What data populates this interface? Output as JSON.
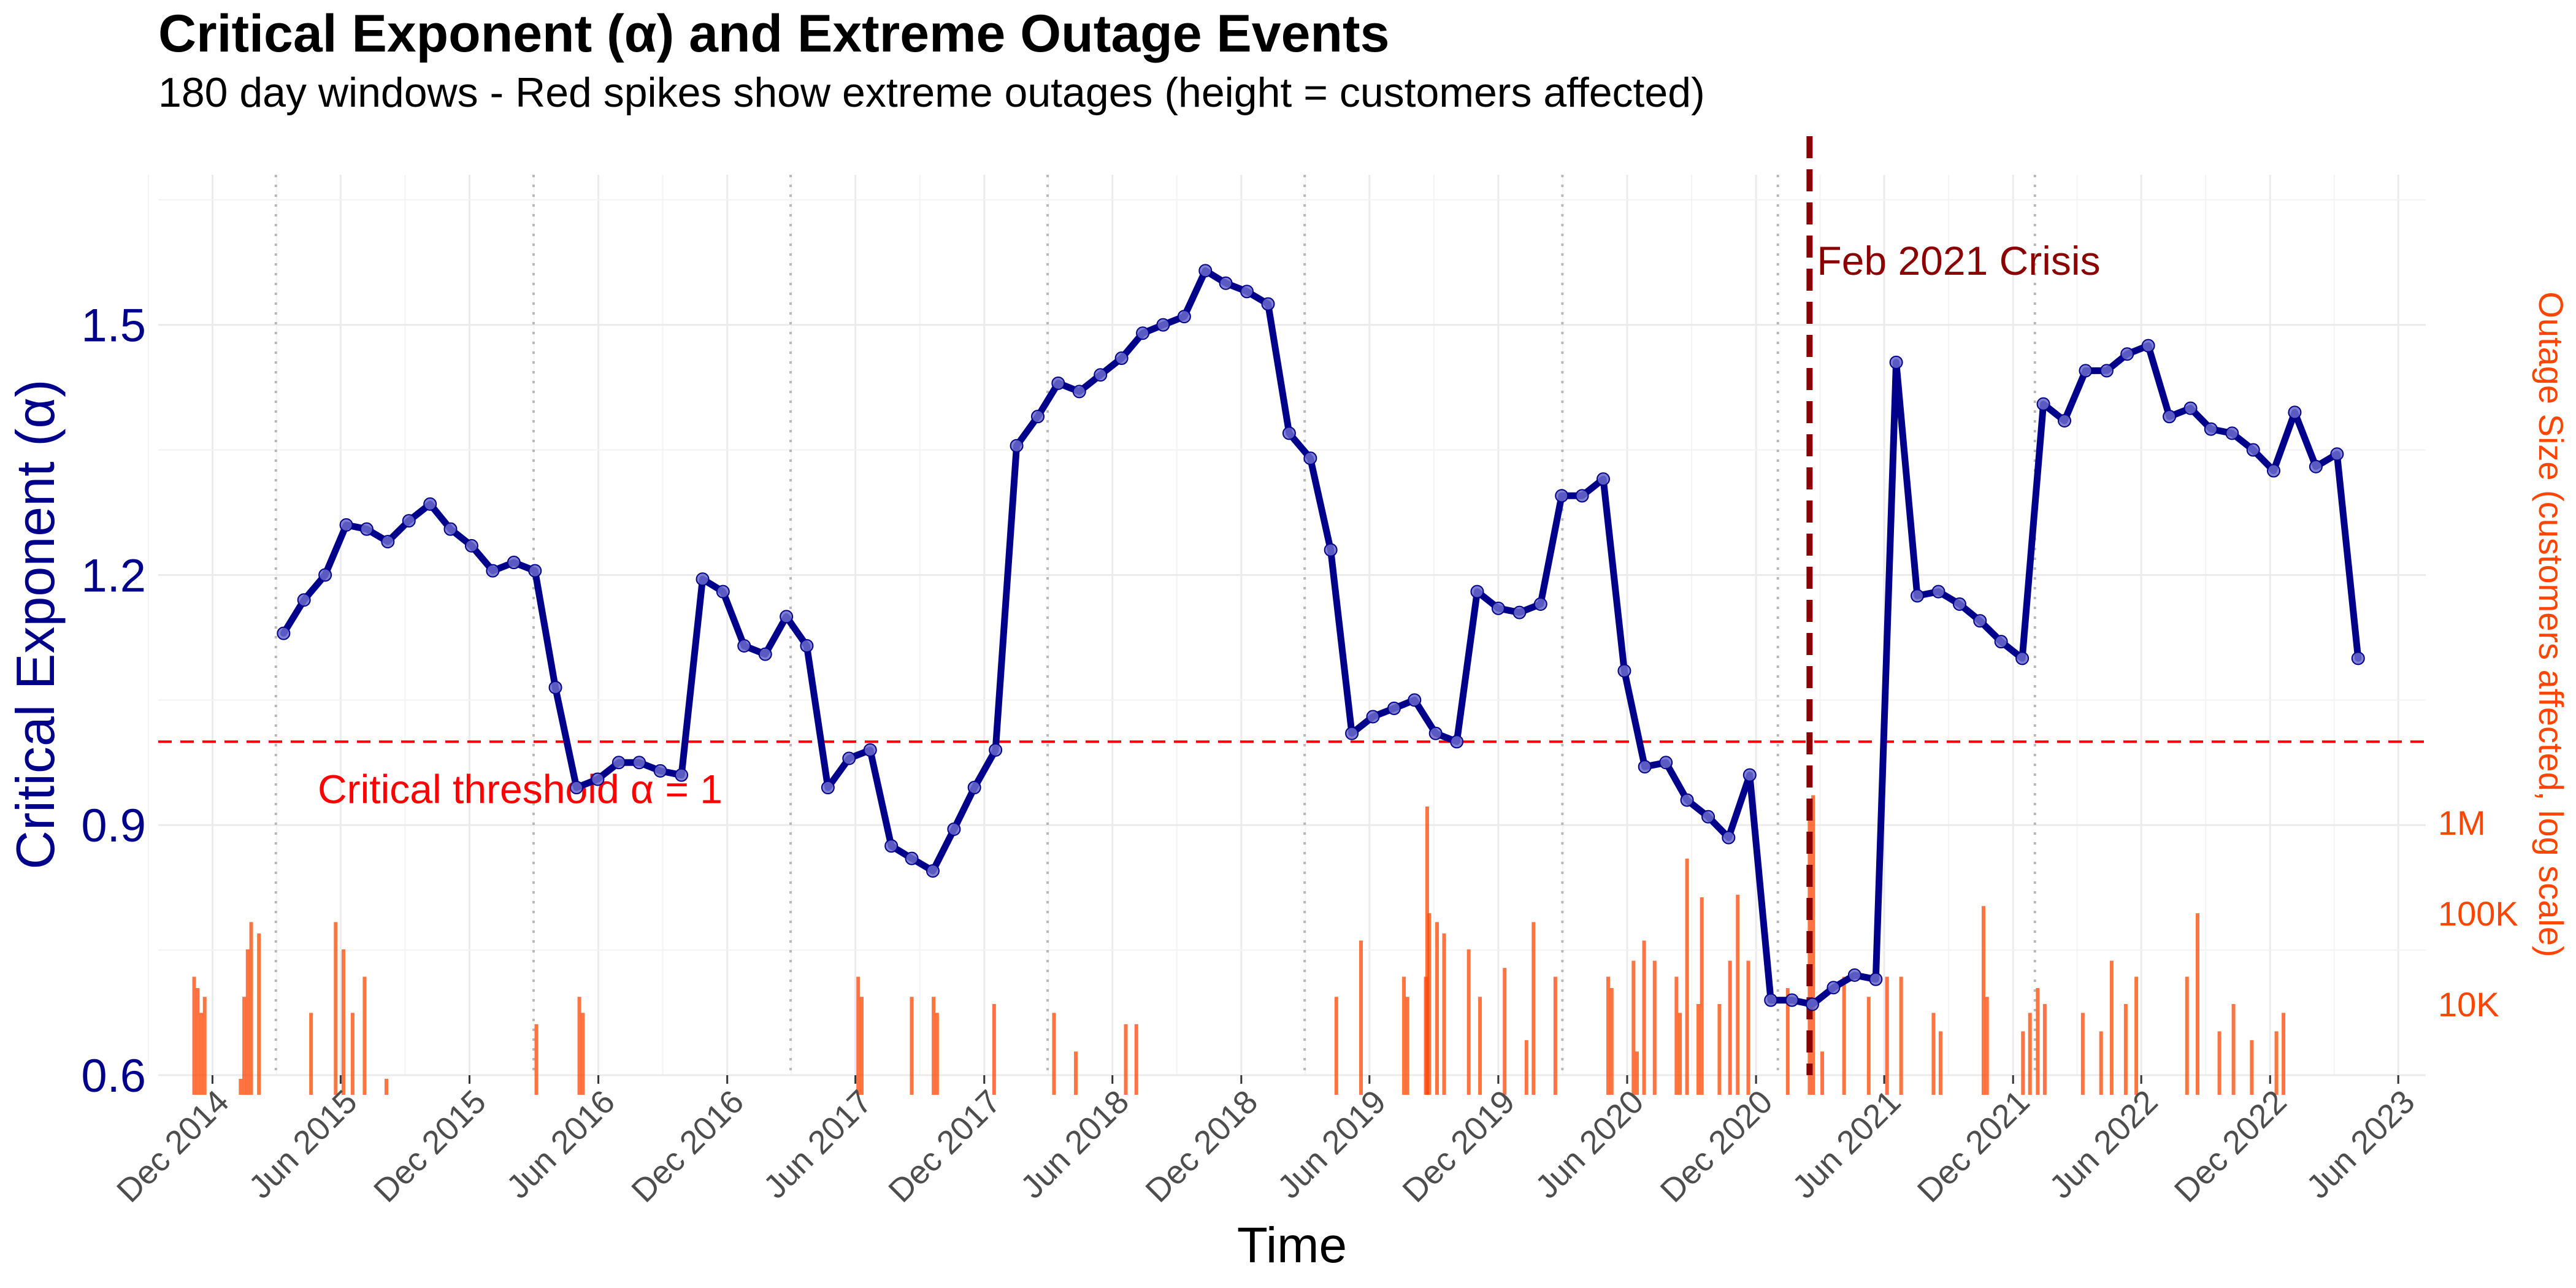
{
  "chart_data": {
    "type": "line",
    "title": "Critical Exponent (α) and Extreme Outage Events",
    "subtitle": "180 day windows - Red spikes show extreme outages (height = customers affected)",
    "xlabel": "Time",
    "ylabel": "Critical Exponent (α)",
    "y2label": "Outage Size (customers affected, log scale)",
    "xlim": [
      "2014-09-15",
      "2023-07-10"
    ],
    "ylim": [
      0.6,
      1.68
    ],
    "x_ticks": [
      {
        "date": "2014-12-01",
        "label": "Dec 2014"
      },
      {
        "date": "2015-06-01",
        "label": "Jun 2015"
      },
      {
        "date": "2015-12-01",
        "label": "Dec 2015"
      },
      {
        "date": "2016-06-01",
        "label": "Jun 2016"
      },
      {
        "date": "2016-12-01",
        "label": "Dec 2016"
      },
      {
        "date": "2017-06-01",
        "label": "Jun 2017"
      },
      {
        "date": "2017-12-01",
        "label": "Dec 2017"
      },
      {
        "date": "2018-06-01",
        "label": "Jun 2018"
      },
      {
        "date": "2018-12-01",
        "label": "Dec 2018"
      },
      {
        "date": "2019-06-01",
        "label": "Jun 2019"
      },
      {
        "date": "2019-12-01",
        "label": "Dec 2019"
      },
      {
        "date": "2020-06-01",
        "label": "Jun 2020"
      },
      {
        "date": "2020-12-01",
        "label": "Dec 2020"
      },
      {
        "date": "2021-06-01",
        "label": "Jun 2021"
      },
      {
        "date": "2021-12-01",
        "label": "Dec 2021"
      },
      {
        "date": "2022-06-01",
        "label": "Jun 2022"
      },
      {
        "date": "2022-12-01",
        "label": "Dec 2022"
      },
      {
        "date": "2023-06-01",
        "label": "Jun 2023"
      }
    ],
    "y_ticks": [
      {
        "value": 0.6,
        "label": "0.6"
      },
      {
        "value": 0.9,
        "label": "0.9"
      },
      {
        "value": 1.2,
        "label": "1.2"
      },
      {
        "value": 1.5,
        "label": "1.5"
      }
    ],
    "y2_ticks": [
      {
        "value": 10000,
        "label": "10K"
      },
      {
        "value": 100000,
        "label": "100K"
      },
      {
        "value": 1000000,
        "label": "1M"
      }
    ],
    "grid": true,
    "series": [
      {
        "type": "line",
        "color": "#00008b",
        "points": [
          [
            "2015-03-12",
            1.13
          ],
          [
            "2015-04-10",
            1.17
          ],
          [
            "2015-05-10",
            1.2
          ],
          [
            "2015-06-09",
            1.26
          ],
          [
            "2015-07-08",
            1.255
          ],
          [
            "2015-08-07",
            1.24
          ],
          [
            "2015-09-06",
            1.265
          ],
          [
            "2015-10-06",
            1.285
          ],
          [
            "2015-11-04",
            1.255
          ],
          [
            "2015-12-04",
            1.235
          ],
          [
            "2016-01-03",
            1.205
          ],
          [
            "2016-02-02",
            1.215
          ],
          [
            "2016-03-03",
            1.205
          ],
          [
            "2016-04-01",
            1.065
          ],
          [
            "2016-05-01",
            0.945
          ],
          [
            "2016-05-31",
            0.955
          ],
          [
            "2016-06-30",
            0.975
          ],
          [
            "2016-07-29",
            0.975
          ],
          [
            "2016-08-28",
            0.965
          ],
          [
            "2016-09-27",
            0.96
          ],
          [
            "2016-10-27",
            1.195
          ],
          [
            "2016-11-25",
            1.18
          ],
          [
            "2016-12-25",
            1.115
          ],
          [
            "2017-01-24",
            1.105
          ],
          [
            "2017-02-23",
            1.15
          ],
          [
            "2017-03-24",
            1.115
          ],
          [
            "2017-04-23",
            0.945
          ],
          [
            "2017-05-23",
            0.98
          ],
          [
            "2017-06-22",
            0.99
          ],
          [
            "2017-07-22",
            0.875
          ],
          [
            "2017-08-20",
            0.86
          ],
          [
            "2017-09-19",
            0.845
          ],
          [
            "2017-10-19",
            0.895
          ],
          [
            "2017-11-17",
            0.945
          ],
          [
            "2017-12-17",
            0.99
          ],
          [
            "2018-01-16",
            1.355
          ],
          [
            "2018-02-15",
            1.39
          ],
          [
            "2018-03-16",
            1.43
          ],
          [
            "2018-04-15",
            1.42
          ],
          [
            "2018-05-15",
            1.44
          ],
          [
            "2018-06-14",
            1.46
          ],
          [
            "2018-07-14",
            1.49
          ],
          [
            "2018-08-12",
            1.5
          ],
          [
            "2018-09-11",
            1.51
          ],
          [
            "2018-10-11",
            1.565
          ],
          [
            "2018-11-09",
            1.55
          ],
          [
            "2018-12-09",
            1.54
          ],
          [
            "2019-01-08",
            1.525
          ],
          [
            "2019-02-07",
            1.37
          ],
          [
            "2019-03-09",
            1.34
          ],
          [
            "2019-04-07",
            1.23
          ],
          [
            "2019-05-07",
            1.01
          ],
          [
            "2019-06-06",
            1.03
          ],
          [
            "2019-07-06",
            1.04
          ],
          [
            "2019-08-04",
            1.05
          ],
          [
            "2019-09-03",
            1.01
          ],
          [
            "2019-10-03",
            1.0
          ],
          [
            "2019-11-01",
            1.18
          ],
          [
            "2019-12-01",
            1.16
          ],
          [
            "2019-12-31",
            1.155
          ],
          [
            "2020-01-30",
            1.165
          ],
          [
            "2020-02-29",
            1.295
          ],
          [
            "2020-03-29",
            1.295
          ],
          [
            "2020-04-28",
            1.315
          ],
          [
            "2020-05-28",
            1.085
          ],
          [
            "2020-06-26",
            0.97
          ],
          [
            "2020-07-26",
            0.975
          ],
          [
            "2020-08-25",
            0.93
          ],
          [
            "2020-09-24",
            0.91
          ],
          [
            "2020-10-23",
            0.885
          ],
          [
            "2020-11-22",
            0.96
          ],
          [
            "2020-12-22",
            0.69
          ],
          [
            "2021-01-21",
            0.69
          ],
          [
            "2021-02-19",
            0.685
          ],
          [
            "2021-03-21",
            0.705
          ],
          [
            "2021-04-20",
            0.72
          ],
          [
            "2021-05-20",
            0.715
          ],
          [
            "2021-06-18",
            1.455
          ],
          [
            "2021-07-18",
            1.175
          ],
          [
            "2021-08-17",
            1.18
          ],
          [
            "2021-09-16",
            1.165
          ],
          [
            "2021-10-15",
            1.145
          ],
          [
            "2021-11-14",
            1.12
          ],
          [
            "2021-12-14",
            1.1
          ],
          [
            "2022-01-13",
            1.405
          ],
          [
            "2022-02-12",
            1.385
          ],
          [
            "2022-03-14",
            1.445
          ],
          [
            "2022-04-13",
            1.445
          ],
          [
            "2022-05-12",
            1.465
          ],
          [
            "2022-06-11",
            1.475
          ],
          [
            "2022-07-11",
            1.39
          ],
          [
            "2022-08-10",
            1.4
          ],
          [
            "2022-09-08",
            1.375
          ],
          [
            "2022-10-08",
            1.37
          ],
          [
            "2022-11-07",
            1.35
          ],
          [
            "2022-12-06",
            1.325
          ],
          [
            "2023-01-05",
            1.395
          ],
          [
            "2023-02-04",
            1.33
          ],
          [
            "2023-03-06",
            1.345
          ],
          [
            "2023-04-05",
            1.1
          ]
        ]
      },
      {
        "type": "spikes",
        "color": "#ff4500",
        "baseline": 1000,
        "points": [
          [
            "2014-11-05",
            20000
          ],
          [
            "2014-11-10",
            15000
          ],
          [
            "2014-11-15",
            8000
          ],
          [
            "2014-11-20",
            12000
          ],
          [
            "2015-01-10",
            1500
          ],
          [
            "2015-01-15",
            12000
          ],
          [
            "2015-01-20",
            40000
          ],
          [
            "2015-01-25",
            80000
          ],
          [
            "2015-02-05",
            60000
          ],
          [
            "2015-04-20",
            8000
          ],
          [
            "2015-05-25",
            80000
          ],
          [
            "2015-06-05",
            40000
          ],
          [
            "2015-06-18",
            8000
          ],
          [
            "2015-07-05",
            20000
          ],
          [
            "2015-08-05",
            1500
          ],
          [
            "2016-03-05",
            6000
          ],
          [
            "2016-05-05",
            12000
          ],
          [
            "2016-05-10",
            8000
          ],
          [
            "2017-06-05",
            20000
          ],
          [
            "2017-06-10",
            12000
          ],
          [
            "2017-08-20",
            12000
          ],
          [
            "2017-09-20",
            12000
          ],
          [
            "2017-09-25",
            8000
          ],
          [
            "2017-12-15",
            10000
          ],
          [
            "2018-03-10",
            8000
          ],
          [
            "2018-04-10",
            3000
          ],
          [
            "2018-06-20",
            6000
          ],
          [
            "2018-07-05",
            6000
          ],
          [
            "2019-04-15",
            12000
          ],
          [
            "2019-05-20",
            50000
          ],
          [
            "2019-07-20",
            20000
          ],
          [
            "2019-07-25",
            12000
          ],
          [
            "2019-08-20",
            20000
          ],
          [
            "2019-08-22",
            1500000
          ],
          [
            "2019-08-25",
            100000
          ],
          [
            "2019-09-05",
            80000
          ],
          [
            "2019-09-15",
            60000
          ],
          [
            "2019-10-20",
            40000
          ],
          [
            "2019-11-05",
            12000
          ],
          [
            "2019-12-10",
            25000
          ],
          [
            "2020-01-10",
            4000
          ],
          [
            "2020-01-20",
            80000
          ],
          [
            "2020-02-20",
            20000
          ],
          [
            "2020-05-05",
            20000
          ],
          [
            "2020-05-10",
            15000
          ],
          [
            "2020-06-10",
            30000
          ],
          [
            "2020-06-15",
            3000
          ],
          [
            "2020-06-25",
            50000
          ],
          [
            "2020-07-10",
            30000
          ],
          [
            "2020-08-10",
            20000
          ],
          [
            "2020-08-15",
            8000
          ],
          [
            "2020-08-25",
            400000
          ],
          [
            "2020-09-10",
            10000
          ],
          [
            "2020-09-15",
            150000
          ],
          [
            "2020-10-10",
            10000
          ],
          [
            "2020-10-25",
            30000
          ],
          [
            "2020-11-05",
            160000
          ],
          [
            "2020-11-20",
            30000
          ],
          [
            "2021-01-15",
            15000
          ],
          [
            "2021-02-15",
            1500000
          ],
          [
            "2021-02-20",
            2000000
          ],
          [
            "2021-03-05",
            3000
          ],
          [
            "2021-04-05",
            20000
          ],
          [
            "2021-05-10",
            12000
          ],
          [
            "2021-06-05",
            20000
          ],
          [
            "2021-06-25",
            20000
          ],
          [
            "2021-08-10",
            8000
          ],
          [
            "2021-08-20",
            5000
          ],
          [
            "2021-10-20",
            120000
          ],
          [
            "2021-10-25",
            12000
          ],
          [
            "2021-12-15",
            5000
          ],
          [
            "2021-12-25",
            8000
          ],
          [
            "2022-01-05",
            15000
          ],
          [
            "2022-01-15",
            10000
          ],
          [
            "2022-03-10",
            8000
          ],
          [
            "2022-04-05",
            5000
          ],
          [
            "2022-04-20",
            30000
          ],
          [
            "2022-05-10",
            10000
          ],
          [
            "2022-05-25",
            20000
          ],
          [
            "2022-08-05",
            20000
          ],
          [
            "2022-08-20",
            100000
          ],
          [
            "2022-09-20",
            5000
          ],
          [
            "2022-10-10",
            10000
          ],
          [
            "2022-11-05",
            4000
          ],
          [
            "2022-12-10",
            5000
          ],
          [
            "2022-12-20",
            8000
          ]
        ]
      }
    ],
    "annotations": [
      {
        "type": "hline",
        "value": 1.0,
        "color": "#ff0000",
        "label": "Critical threshold α = 1"
      },
      {
        "type": "vline",
        "date": "2021-02-15",
        "color": "#8b0000",
        "label": "Feb 2021 Crisis"
      }
    ],
    "dotted_vlines": [
      "2015-03-01",
      "2016-03-01",
      "2017-03-01",
      "2018-03-01",
      "2019-03-01",
      "2020-03-01",
      "2021-01-01",
      "2022-01-01"
    ]
  }
}
